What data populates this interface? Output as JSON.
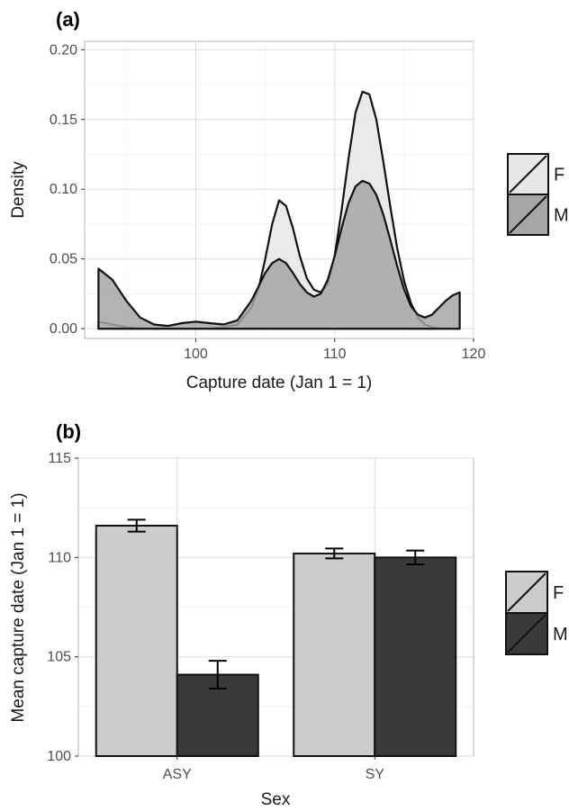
{
  "chart_data": [
    {
      "type": "area",
      "panel_label": "(a)",
      "xlabel": "Capture date (Jan 1 = 1)",
      "ylabel": "Density",
      "xlim": [
        92,
        120
      ],
      "ylim": [
        -0.007,
        0.206
      ],
      "xticks": [
        100,
        110,
        120
      ],
      "yticks": [
        0.0,
        0.05,
        0.1,
        0.15,
        0.2
      ],
      "ytick_labels": [
        "0.00",
        "0.05",
        "0.10",
        "0.15",
        "0.20"
      ],
      "grid": true,
      "legend_position": "right",
      "series": [
        {
          "name": "F",
          "color": "#e6e6e6",
          "x": [
            93,
            94,
            95,
            96,
            97,
            98,
            99,
            100,
            101,
            102,
            103,
            104,
            104.5,
            105,
            105.5,
            106,
            106.5,
            107,
            107.5,
            108,
            108.5,
            109,
            109.5,
            110,
            110.5,
            111,
            111.5,
            112,
            112.5,
            113,
            113.5,
            114,
            114.5,
            115,
            115.5,
            116,
            116.5,
            117,
            117.5,
            118,
            118.5,
            119
          ],
          "values": [
            0.005,
            0.003,
            0.001,
            0.0,
            0.0,
            0.0,
            0.0,
            0.0,
            0.0,
            0.001,
            0.003,
            0.015,
            0.028,
            0.05,
            0.075,
            0.092,
            0.088,
            0.072,
            0.052,
            0.036,
            0.028,
            0.026,
            0.032,
            0.052,
            0.085,
            0.122,
            0.155,
            0.17,
            0.168,
            0.15,
            0.12,
            0.088,
            0.058,
            0.034,
            0.018,
            0.008,
            0.003,
            0.001,
            0.0,
            0.0,
            0.0,
            0.0
          ]
        },
        {
          "name": "M",
          "color": "#a6a6a6",
          "x": [
            93,
            94,
            95,
            96,
            97,
            98,
            99,
            100,
            101,
            102,
            103,
            104,
            104.5,
            105,
            105.5,
            106,
            106.5,
            107,
            107.5,
            108,
            108.5,
            109,
            109.5,
            110,
            110.5,
            111,
            111.5,
            112,
            112.5,
            113,
            113.5,
            114,
            114.5,
            115,
            115.5,
            116,
            116.5,
            117,
            117.5,
            118,
            118.5,
            119
          ],
          "values": [
            0.043,
            0.035,
            0.02,
            0.008,
            0.003,
            0.002,
            0.004,
            0.005,
            0.004,
            0.003,
            0.006,
            0.02,
            0.03,
            0.04,
            0.047,
            0.05,
            0.047,
            0.04,
            0.032,
            0.026,
            0.023,
            0.025,
            0.035,
            0.052,
            0.072,
            0.09,
            0.102,
            0.106,
            0.104,
            0.096,
            0.082,
            0.064,
            0.045,
            0.028,
            0.016,
            0.01,
            0.008,
            0.01,
            0.015,
            0.02,
            0.024,
            0.026
          ]
        }
      ]
    },
    {
      "type": "bar",
      "panel_label": "(b)",
      "xlabel": "Sex",
      "ylabel": "Mean capture date (Jan 1 = 1)",
      "categories": [
        "ASY",
        "SY"
      ],
      "ylim": [
        100,
        115
      ],
      "yticks": [
        100,
        105,
        110,
        115
      ],
      "grid": true,
      "legend_position": "right",
      "series": [
        {
          "name": "F",
          "color": "#cccccc",
          "values": [
            111.6,
            110.2
          ],
          "error": [
            0.3,
            0.25
          ]
        },
        {
          "name": "M",
          "color": "#3a3a3a",
          "values": [
            104.1,
            110.0
          ],
          "error": [
            0.7,
            0.35
          ]
        }
      ]
    }
  ]
}
